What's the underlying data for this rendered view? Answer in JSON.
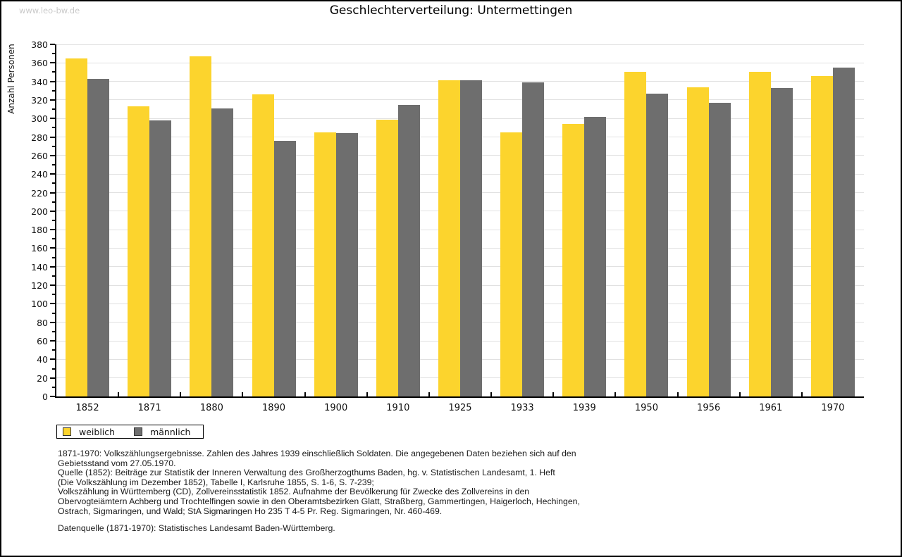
{
  "watermark": "www.leo-bw.de",
  "title": "Geschlechterverteilung: Untermettingen",
  "chart_data": {
    "type": "bar",
    "title": "Geschlechterverteilung: Untermettingen",
    "xlabel": "",
    "ylabel": "Anzahl Personen",
    "ylim": [
      0,
      380
    ],
    "ytick_major": 20,
    "ytick_minor": 10,
    "grid": true,
    "legend_position": "bottom-left",
    "categories": [
      "1852",
      "1871",
      "1880",
      "1890",
      "1900",
      "1910",
      "1925",
      "1933",
      "1939",
      "1950",
      "1956",
      "1961",
      "1970"
    ],
    "series": [
      {
        "name": "weiblich",
        "color": "#fcd42d",
        "values": [
          365,
          313,
          367,
          326,
          285,
          299,
          341,
          285,
          294,
          350,
          334,
          350,
          346
        ]
      },
      {
        "name": "männlich",
        "color": "#6e6e6e",
        "values": [
          343,
          298,
          311,
          276,
          284,
          315,
          341,
          339,
          302,
          327,
          317,
          333,
          355
        ]
      }
    ]
  },
  "colors": {
    "axis": "#000000",
    "gridline": "#e1e1e1",
    "watermark": "#c9c9c9"
  },
  "footer": {
    "lines": [
      "1871-1970: Volkszählungsergebnisse. Zahlen des Jahres 1939 einschließlich Soldaten. Die angegebenen Daten beziehen sich auf den",
      "Gebietsstand vom 27.05.1970.",
      "Quelle (1852): Beiträge zur Statistik der Inneren Verwaltung des Großherzogthums Baden, hg. v. Statistischen Landesamt, 1. Heft",
      "(Die Volkszählung im Dezember 1852), Tabelle I, Karlsruhe 1855, S. 1-6, S. 7-239;",
      "Volkszählung in Württemberg (CD), Zollvereinsstatistik 1852. Aufnahme der Bevölkerung für Zwecke des Zollvereins in den",
      "Obervogteiämtern Achberg und Trochtelfingen sowie in den Oberamtsbezirken Glatt, Straßberg, Gammertingen, Haigerloch, Hechingen,",
      "Ostrach, Sigmaringen, und Wald; StA Sigmaringen Ho 235 T 4-5 Pr. Reg. Sigmaringen, Nr. 460-469."
    ],
    "datasource": "Datenquelle (1871-1970): Statistisches Landesamt Baden-Württemberg."
  }
}
